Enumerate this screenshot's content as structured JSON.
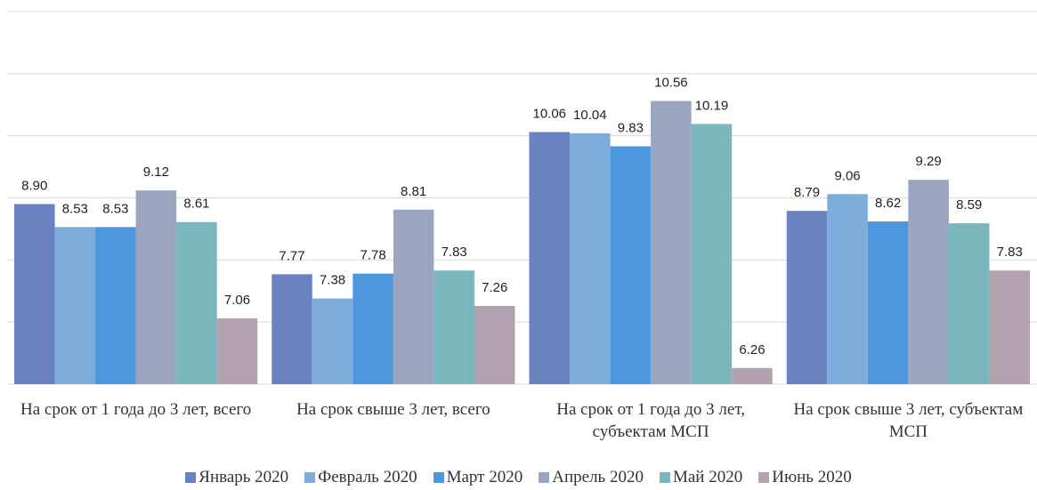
{
  "chart_data": {
    "type": "bar",
    "categories": [
      "На срок от 1 года до 3 лет, всего",
      "На срок свыше 3 лет, всего",
      "На срок от 1 года до 3 лет, субъектам МСП",
      "На срок свыше 3 лет, субъектам МСП"
    ],
    "series": [
      {
        "name": "Январь 2020",
        "color": "#6a82c0",
        "values": [
          8.9,
          7.77,
          10.06,
          8.79
        ],
        "value_labels": [
          "8.90",
          "7.77",
          "10.06",
          "8.79"
        ]
      },
      {
        "name": "Февраль 2020",
        "color": "#7daedb",
        "values": [
          8.53,
          7.38,
          10.04,
          9.06
        ]
      },
      {
        "name": "Март 2020",
        "color": "#4d97de",
        "values": [
          8.53,
          7.78,
          9.83,
          8.62
        ]
      },
      {
        "name": "Апрель 2020",
        "color": "#9aa5bf",
        "values": [
          9.12,
          8.81,
          10.56,
          9.29
        ]
      },
      {
        "name": "Май 2020",
        "color": "#7ab6bc",
        "values": [
          8.61,
          7.83,
          10.19,
          8.59
        ]
      },
      {
        "name": "Июнь 2020",
        "color": "#b3a3b0",
        "values": [
          7.06,
          7.26,
          6.26,
          7.83
        ]
      }
    ],
    "ylim": [
      6,
      12
    ],
    "yticks": [
      6,
      7,
      8,
      9,
      10,
      11,
      12
    ],
    "grid": true,
    "legend": "bottom"
  }
}
